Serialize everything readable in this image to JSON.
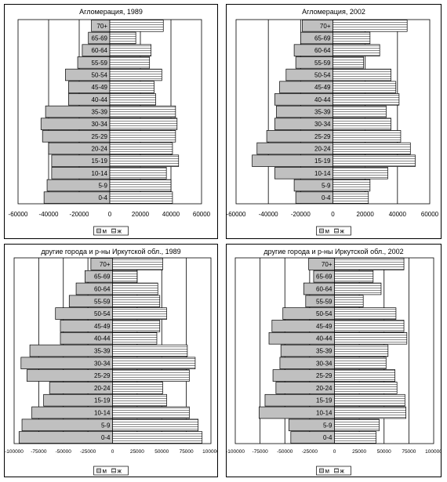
{
  "chart_data": [
    {
      "type": "bar",
      "orientation": "horizontal",
      "layout": "population-pyramid",
      "title": "Агломерация, 1989",
      "categories": [
        "0-4",
        "5-9",
        "10-14",
        "15-19",
        "20-24",
        "25-29",
        "30-34",
        "35-39",
        "40-44",
        "45-49",
        "50-54",
        "55-59",
        "60-64",
        "65-69",
        "70+"
      ],
      "series": [
        {
          "name": "м",
          "values": [
            -43000,
            -41000,
            -38000,
            -38000,
            -40000,
            -44000,
            -45000,
            -42000,
            -27000,
            -27000,
            -29000,
            -21000,
            -18000,
            -14000,
            -12000
          ]
        },
        {
          "name": "ж",
          "values": [
            41000,
            40000,
            37000,
            45000,
            41000,
            43000,
            44000,
            43000,
            30000,
            29000,
            34000,
            26000,
            27000,
            17000,
            35000
          ]
        }
      ],
      "xlim": [
        -60000,
        60000
      ],
      "xticks": [
        -60000,
        -40000,
        -20000,
        0,
        20000,
        40000,
        60000
      ],
      "xtick_labels": [
        "-60000",
        "-40000",
        "-20000",
        "0",
        "20000",
        "40000",
        "60000"
      ],
      "grid": "vertical",
      "legend": "bottom-center",
      "colors": {
        "м": "#c0c0c0",
        "ж": "#ffffff"
      }
    },
    {
      "type": "bar",
      "orientation": "horizontal",
      "layout": "population-pyramid",
      "title": "Агломерация, 2002",
      "categories": [
        "0-4",
        "5-9",
        "10-14",
        "15-19",
        "20-24",
        "25-29",
        "30-34",
        "35-39",
        "40-44",
        "45-49",
        "50-54",
        "55-59",
        "60-64",
        "65-69",
        "70+"
      ],
      "series": [
        {
          "name": "м",
          "values": [
            -23000,
            -24000,
            -36000,
            -50000,
            -47000,
            -41000,
            -36000,
            -35000,
            -36000,
            -33000,
            -29000,
            -23000,
            -24000,
            -20000,
            -19000
          ]
        },
        {
          "name": "ж",
          "values": [
            22000,
            23000,
            34000,
            51000,
            48000,
            42000,
            36000,
            33000,
            41000,
            39000,
            36000,
            19000,
            29000,
            23000,
            46000
          ]
        }
      ],
      "xlim": [
        -60000,
        60000
      ],
      "xticks": [
        -60000,
        -40000,
        -20000,
        0,
        20000,
        40000,
        60000
      ],
      "xtick_labels": [
        "-60000",
        "-40000",
        "-20000",
        "0",
        "20000",
        "40000",
        "60000"
      ],
      "grid": "vertical",
      "legend": "bottom-center",
      "colors": {
        "м": "#c0c0c0",
        "ж": "#ffffff"
      }
    },
    {
      "type": "bar",
      "orientation": "horizontal",
      "layout": "population-pyramid",
      "title": "другие города и р-ны Иркутской обл., 1989",
      "categories": [
        "0-4",
        "5-9",
        "10-14",
        "15-19",
        "20-24",
        "25-29",
        "30-34",
        "35-39",
        "40-44",
        "45-49",
        "50-54",
        "55-59",
        "60-64",
        "65-69",
        "70+"
      ],
      "series": [
        {
          "name": "м",
          "values": [
            -95000,
            -92000,
            -82000,
            -70000,
            -64000,
            -87000,
            -93000,
            -84000,
            -53000,
            -53000,
            -58000,
            -44000,
            -37000,
            -28000,
            -22000
          ]
        },
        {
          "name": "ж",
          "values": [
            91000,
            87000,
            78000,
            55000,
            51000,
            78000,
            84000,
            76000,
            45000,
            48000,
            55000,
            48000,
            46000,
            25000,
            51000
          ]
        }
      ],
      "xlim": [
        -100000,
        100000
      ],
      "xticks": [
        -100000,
        -75000,
        -50000,
        -25000,
        0,
        25000,
        50000,
        75000,
        100000
      ],
      "xtick_labels": [
        "-100000",
        "-75000",
        "-50000",
        "-25000",
        "0",
        "25000",
        "50000",
        "75000",
        "100000"
      ],
      "grid": "vertical",
      "legend": "bottom-center",
      "colors": {
        "м": "#c0c0c0",
        "ж": "#ffffff"
      }
    },
    {
      "type": "bar",
      "orientation": "horizontal",
      "layout": "population-pyramid",
      "title": "другие города и р-ны Иркутской обл., 2002",
      "categories": [
        "0-4",
        "5-9",
        "10-14",
        "15-19",
        "20-24",
        "25-29",
        "30-34",
        "35-39",
        "40-44",
        "45-49",
        "50-54",
        "55-59",
        "60-64",
        "65-69",
        "70+"
      ],
      "series": [
        {
          "name": "м",
          "values": [
            -44000,
            -46000,
            -76000,
            -70000,
            -59000,
            -62000,
            -55000,
            -54000,
            -66000,
            -63000,
            -52000,
            -29000,
            -31000,
            -21000,
            -26000
          ]
        },
        {
          "name": "ж",
          "values": [
            42000,
            45000,
            72000,
            71000,
            63000,
            61000,
            52000,
            54000,
            73000,
            70000,
            62000,
            29000,
            47000,
            39000,
            70000
          ]
        }
      ],
      "xlim": [
        -100000,
        100000
      ],
      "xticks": [
        -100000,
        -75000,
        -50000,
        -25000,
        0,
        25000,
        50000,
        75000,
        100000
      ],
      "xtick_labels": [
        "-100000",
        "-75000",
        "-50000",
        "-25000",
        "0",
        "25000",
        "50000",
        "75000",
        "100000"
      ],
      "grid": "vertical",
      "legend": "bottom-center",
      "colors": {
        "м": "#c0c0c0",
        "ж": "#ffffff"
      }
    }
  ]
}
